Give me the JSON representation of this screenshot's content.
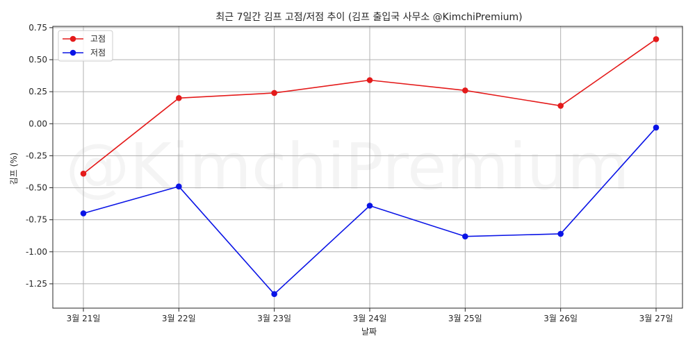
{
  "chart_data": {
    "type": "line",
    "title": "최근 7일간 김프 고점/저점 추이 (김프 출입국 사무소 @KimchiPremium)",
    "xlabel": "날짜",
    "ylabel": "김프 (%)",
    "categories": [
      "3월 21일",
      "3월 22일",
      "3월 23일",
      "3월 24일",
      "3월 25일",
      "3월 26일",
      "3월 27일"
    ],
    "series": [
      {
        "name": "고점",
        "color": "#e41a1a",
        "values": [
          -0.39,
          0.2,
          0.24,
          0.34,
          0.26,
          0.14,
          0.66
        ]
      },
      {
        "name": "저점",
        "color": "#0a14e6",
        "values": [
          -0.7,
          -0.49,
          -1.33,
          -0.64,
          -0.88,
          -0.86,
          -0.03
        ]
      }
    ],
    "ylim": [
      -1.44,
      0.76
    ],
    "yticks": [
      0.75,
      0.5,
      0.25,
      0.0,
      -0.25,
      -0.5,
      -0.75,
      -1.0,
      -1.25
    ],
    "ytick_labels": [
      "0.75",
      "0.50",
      "0.25",
      "0.00",
      "-0.25",
      "-0.50",
      "-0.75",
      "-1.00",
      "-1.25"
    ],
    "grid": true,
    "legend": "top-left",
    "watermark": "@KimchiPremium"
  }
}
